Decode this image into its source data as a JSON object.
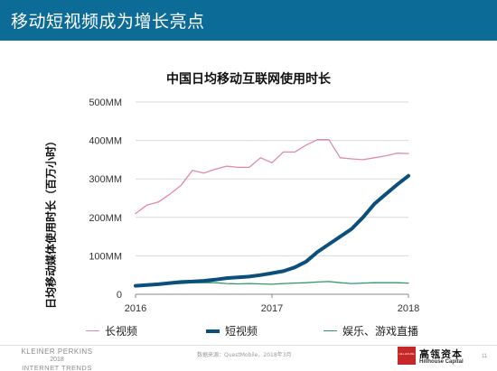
{
  "header": {
    "title": "移动短视频成为增长亮点"
  },
  "chart_data": {
    "type": "line",
    "title": "中国日均移动互联网使用时长",
    "ylabel": "日均移动媒体使用时长（百万小时）",
    "xlabel": "",
    "ylim": [
      0,
      500
    ],
    "y_ticks": [
      "0",
      "100MM",
      "200MM",
      "300MM",
      "400MM",
      "500MM"
    ],
    "x_range": [
      2016,
      2018
    ],
    "x_ticks": [
      "2016",
      "2017",
      "2018"
    ],
    "grid": "horizontal",
    "legend_position": "bottom",
    "series": [
      {
        "name": "长视频",
        "color": "#e08aa8",
        "stroke": "thin",
        "x": [
          2016.0,
          2016.0833,
          2016.1667,
          2016.25,
          2016.3333,
          2016.4167,
          2016.5,
          2016.5833,
          2016.6667,
          2016.75,
          2016.8333,
          2016.9167,
          2017.0,
          2017.0833,
          2017.1667,
          2017.25,
          2017.3333,
          2017.4167,
          2017.5,
          2017.5833,
          2017.6667,
          2017.75,
          2017.8333,
          2017.9167,
          2018.0
        ],
        "values": [
          210,
          232,
          240,
          260,
          283,
          322,
          315,
          325,
          333,
          330,
          330,
          355,
          342,
          370,
          370,
          388,
          402,
          402,
          355,
          352,
          350,
          355,
          360,
          367,
          366
        ]
      },
      {
        "name": "短视频",
        "color": "#0b4f7c",
        "stroke": "thick",
        "x": [
          2016.0,
          2016.0833,
          2016.1667,
          2016.25,
          2016.3333,
          2016.4167,
          2016.5,
          2016.5833,
          2016.6667,
          2016.75,
          2016.8333,
          2016.9167,
          2017.0,
          2017.0833,
          2017.1667,
          2017.25,
          2017.3333,
          2017.4167,
          2017.5,
          2017.5833,
          2017.6667,
          2017.75,
          2017.8333,
          2017.9167,
          2018.0
        ],
        "values": [
          22,
          24,
          26,
          29,
          32,
          33,
          35,
          38,
          42,
          44,
          46,
          50,
          55,
          60,
          70,
          85,
          110,
          130,
          150,
          170,
          200,
          235,
          260,
          285,
          308
        ]
      },
      {
        "name": "娱乐、游戏直播",
        "color": "#2e9a6a",
        "stroke": "thin",
        "x": [
          2016.0,
          2016.0833,
          2016.1667,
          2016.25,
          2016.3333,
          2016.4167,
          2016.5,
          2016.5833,
          2016.6667,
          2016.75,
          2016.8333,
          2016.9167,
          2017.0,
          2017.0833,
          2017.1667,
          2017.25,
          2017.3333,
          2017.4167,
          2017.5,
          2017.5833,
          2017.6667,
          2017.75,
          2017.8333,
          2017.9167,
          2018.0
        ],
        "values": [
          22,
          24,
          25,
          27,
          28,
          30,
          30,
          30,
          28,
          27,
          28,
          27,
          26,
          28,
          29,
          30,
          32,
          33,
          30,
          28,
          29,
          30,
          30,
          30,
          29
        ]
      }
    ]
  },
  "footer": {
    "brand_line1": "KLEINER PERKINS",
    "brand_line2": "2018",
    "brand_line3": "INTERNET TRENDS",
    "source": "数据来源：QuestMobile，2018年3月",
    "logo_box_text": "HILLHOUSE",
    "logo_cn": "高瓴资本",
    "logo_en": "Hillhouse Capital",
    "page_number": "11"
  }
}
